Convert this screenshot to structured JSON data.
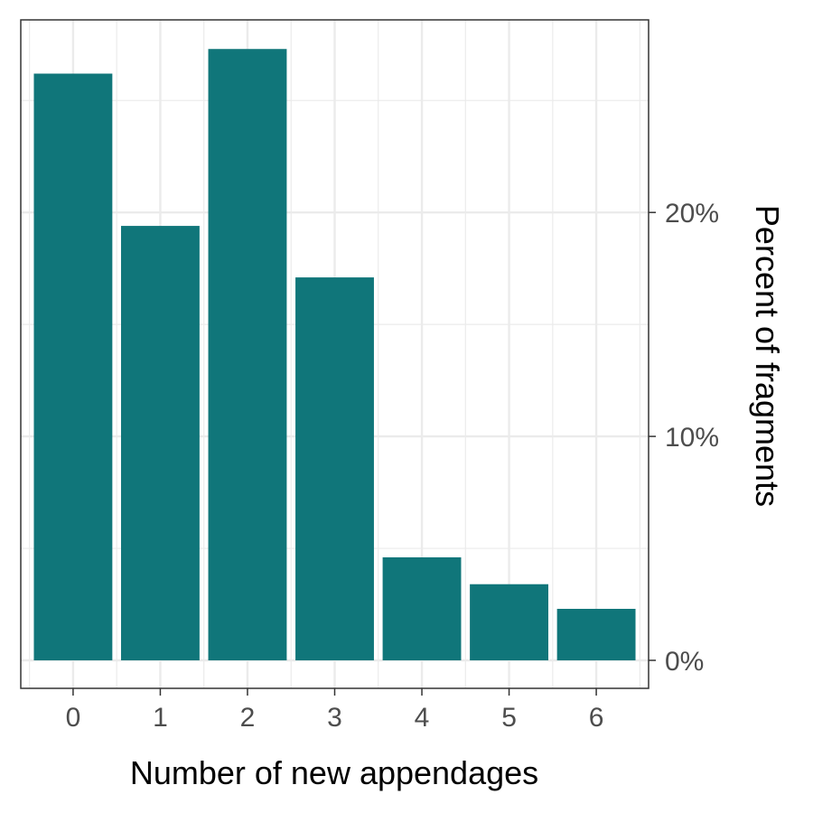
{
  "chart_data": {
    "type": "bar",
    "categories": [
      "0",
      "1",
      "2",
      "3",
      "4",
      "5",
      "6"
    ],
    "values": [
      26.2,
      19.4,
      27.3,
      17.1,
      4.6,
      3.4,
      2.3
    ],
    "xlabel": "Number of new appendages",
    "ylabel": "Percent of fragments",
    "y_axis_position": "right",
    "y_ticks": [
      0,
      10,
      20
    ],
    "y_tick_labels": [
      "0%",
      "10%",
      "20%"
    ],
    "ylim": [
      -1.25,
      28.6
    ],
    "grid": true,
    "bar_color": "#10767A"
  }
}
